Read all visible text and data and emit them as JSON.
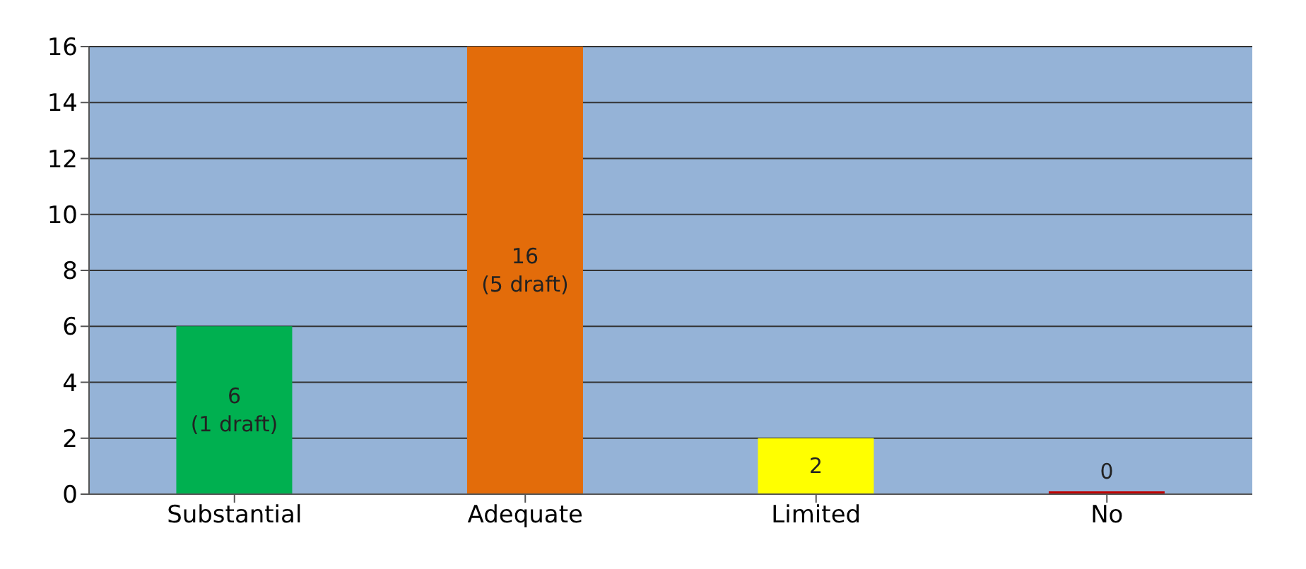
{
  "chart_data": {
    "type": "bar",
    "categories": [
      "Substantial",
      "Adequate",
      "Limited",
      "No"
    ],
    "values": [
      6,
      16,
      2,
      0
    ],
    "colors": [
      "#00b050",
      "#e36c0a",
      "#ffff00",
      "#c00000"
    ],
    "value_labels": [
      "6\n(1 draft)",
      "16\n(5 draft)",
      "2",
      "0"
    ],
    "ylim": [
      0,
      16
    ],
    "yticks": [
      0,
      2,
      4,
      6,
      8,
      10,
      12,
      14,
      16
    ],
    "grid": "y"
  }
}
